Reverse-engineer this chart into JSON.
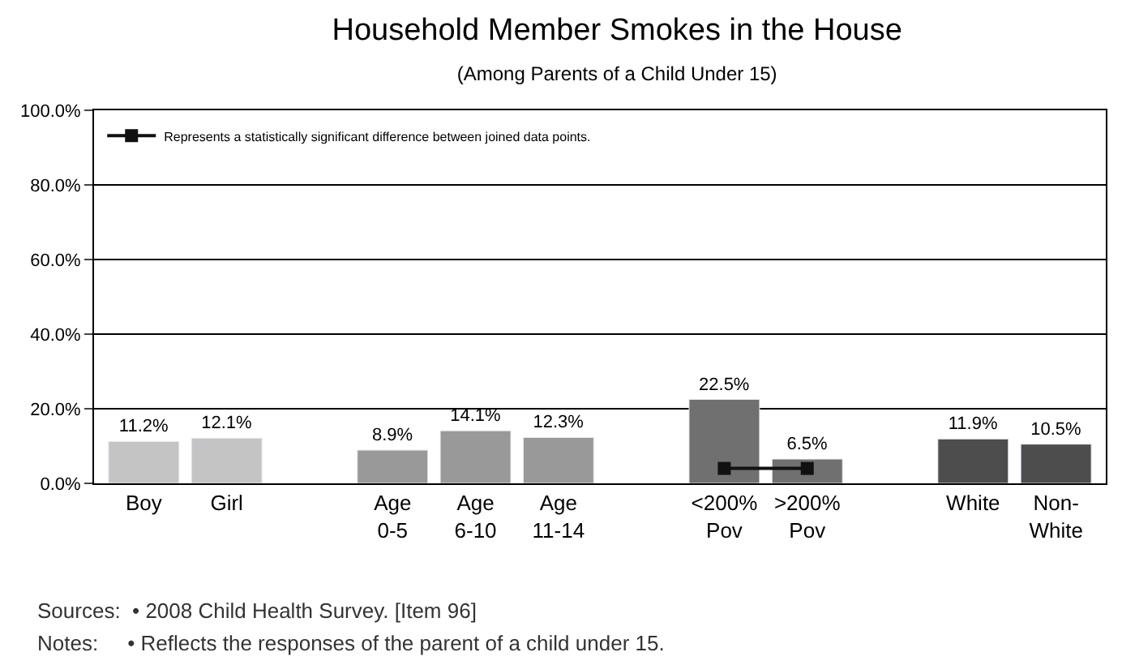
{
  "chart_data": {
    "type": "bar",
    "title": "Household Member Smokes in the House",
    "subtitle": "(Among Parents of a Child Under 15)",
    "categories": [
      "Boy",
      "Girl",
      null,
      "Age\n0-5",
      "Age\n6-10",
      "Age\n11-14",
      null,
      "<200%\nPov",
      ">200%\nPov",
      null,
      "White",
      "Non-\nWhite"
    ],
    "series": [
      {
        "values": [
          11.2,
          12.1,
          null,
          8.9,
          14.1,
          12.3,
          null,
          22.5,
          6.5,
          null,
          11.9,
          10.5
        ],
        "colors": [
          "#c4c4c4",
          "#c4c4c4",
          null,
          "#999999",
          "#999999",
          "#999999",
          null,
          "#707070",
          "#707070",
          null,
          "#4d4d4d",
          "#4d4d4d"
        ],
        "value_labels": [
          "11.2%",
          "12.1%",
          null,
          "8.9%",
          "14.1%",
          "12.3%",
          null,
          "22.5%",
          "6.5%",
          null,
          "11.9%",
          "10.5%"
        ]
      },
      {
        "type": "line",
        "name": "Represents a statistically significant difference between joined data points.",
        "color": "#111111",
        "marker": "square",
        "values": [
          null,
          null,
          null,
          null,
          null,
          null,
          null,
          4,
          4,
          null,
          null,
          null
        ]
      }
    ],
    "ylim": [
      0,
      100
    ],
    "yticks": [
      {
        "value": 0,
        "label": "0.0%"
      },
      {
        "value": 20,
        "label": "20.0%"
      },
      {
        "value": 40,
        "label": "40.0%"
      },
      {
        "value": 60,
        "label": "60.0%"
      },
      {
        "value": 80,
        "label": "80.0%"
      },
      {
        "value": 100,
        "label": "100.0%"
      }
    ],
    "grid": "y",
    "legend": "top left",
    "annotations": [
      "Sources:  • 2008 Child Health Survey. [Item 96]",
      "Notes:     • Reflects the responses of the parent of a child under 15."
    ]
  }
}
